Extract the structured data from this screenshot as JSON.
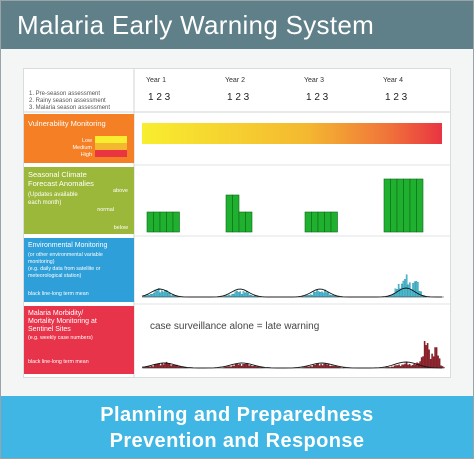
{
  "title": "Malaria Early Warning System",
  "header": {
    "assessments": [
      "1. Pre-season assessment",
      "2. Rainy season assessment",
      "3. Malaria season assessment"
    ],
    "years": [
      "Year 1",
      "Year 2",
      "Year 3",
      "Year 4"
    ],
    "sub_ticks": "1 2 3"
  },
  "rows": {
    "vulnerability": {
      "title": "Vulnerability Monitoring",
      "legend": [
        "Low",
        "Medium",
        "High"
      ],
      "color": "#f47f24",
      "legend_colors": [
        "#f8ee2f",
        "#f4b830",
        "#e93442"
      ]
    },
    "forecast": {
      "title_lines": [
        "Seasonal Climate",
        "Forecast Anomalies"
      ],
      "note_lines": [
        "(Updates available",
        "each month)"
      ],
      "levels": [
        "above",
        "normal",
        "below"
      ],
      "color": "#9cb83a",
      "anomalies": [
        [
          "below",
          "below",
          "below",
          "below",
          "below"
        ],
        [
          "normal",
          "normal",
          "below",
          "below"
        ],
        [
          "below",
          "below",
          "below",
          "below",
          "below"
        ],
        [
          "above",
          "above",
          "above",
          "above",
          "above",
          "above"
        ]
      ]
    },
    "environment": {
      "title": "Environmental Monitoring",
      "note_lines": [
        "(or other environmental variable",
        "monitoring)",
        "(e.g. daily data from satellite or",
        "meteorological station)"
      ],
      "legend": "black line-long term mean",
      "color": "#2e9fd8"
    },
    "morbidity": {
      "title_lines": [
        "Malaria Morbidity/",
        "Mortality Monitoring at",
        "Sentinel Sites"
      ],
      "note": "(e.g. weekly case numbers)",
      "legend": "black line-long term mean",
      "annotation": "case surveillance alone = late warning",
      "color": "#e8344a"
    }
  },
  "footer": {
    "line1": "Planning and Preparedness",
    "line2": "Prevention and Response"
  }
}
